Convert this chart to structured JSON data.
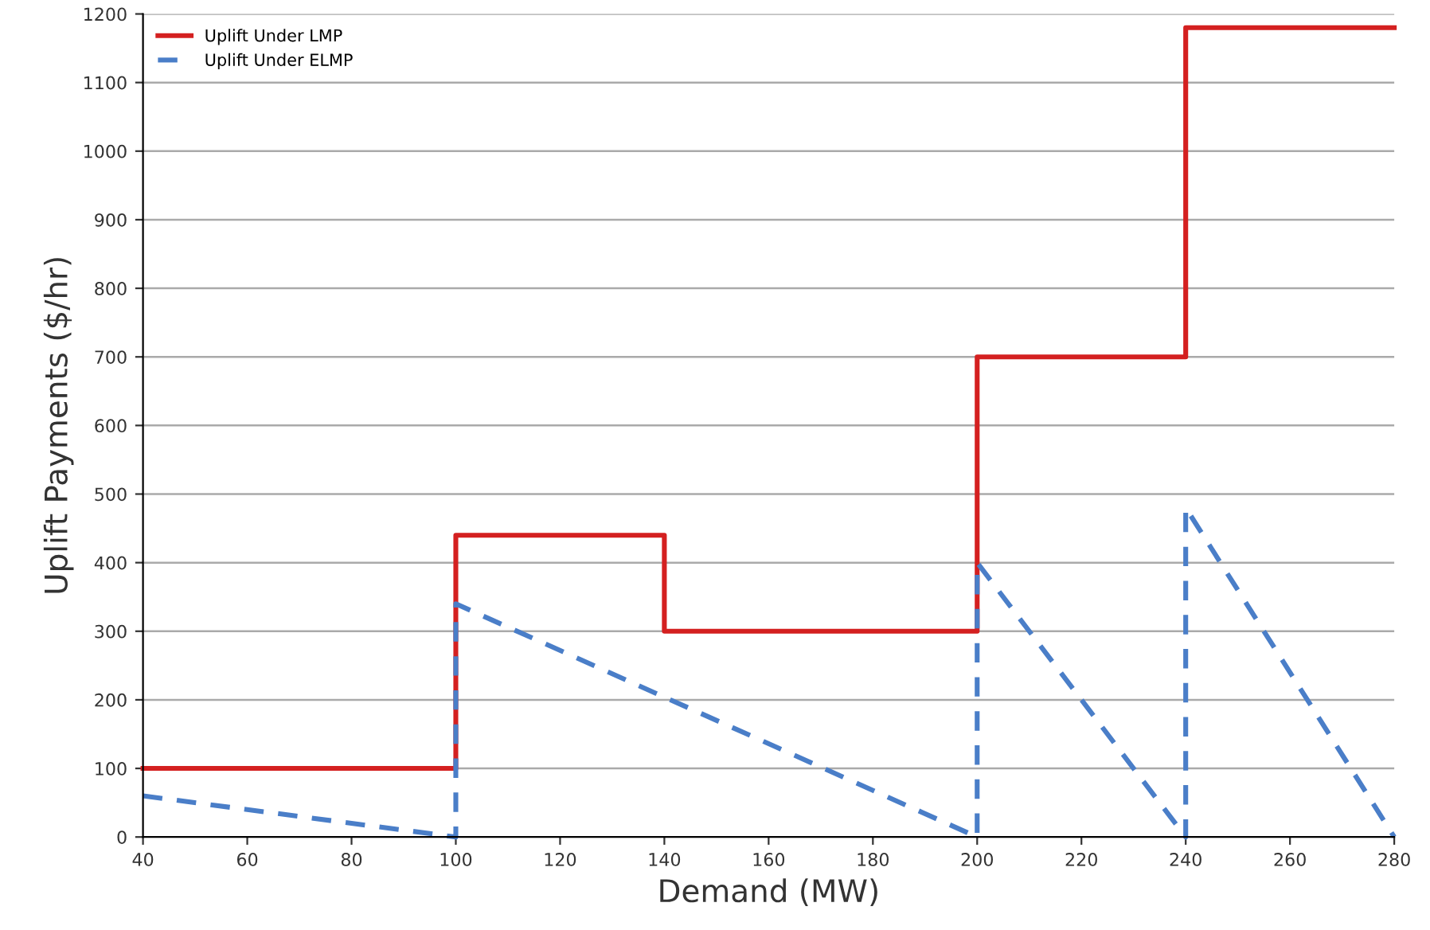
{
  "chart_data": {
    "type": "line",
    "xlabel": "Demand (MW)",
    "ylabel": "Uplift Payments ($/hr)",
    "series": [
      {
        "name": "Uplift Under LMP",
        "color": "#d42020",
        "line_style": "solid",
        "x": [
          40,
          100,
          100,
          140,
          140,
          200,
          200,
          240,
          240,
          280
        ],
        "values": [
          100,
          100,
          440,
          440,
          300,
          300,
          700,
          700,
          1180,
          1180
        ]
      },
      {
        "name": "Uplift Under ELMP",
        "color": "#4a7ec8",
        "line_style": "dashed",
        "x": [
          40,
          100,
          100,
          200,
          200,
          240,
          240,
          280
        ],
        "values": [
          60,
          0,
          340,
          0,
          400,
          0,
          480,
          0
        ]
      }
    ],
    "xlim": [
      40,
      280
    ],
    "xticks": [
      40,
      60,
      80,
      100,
      120,
      140,
      160,
      180,
      200,
      220,
      240,
      260,
      280
    ],
    "ylim": [
      0,
      1200
    ],
    "yticks": [
      0,
      100,
      200,
      300,
      400,
      500,
      600,
      700,
      800,
      900,
      1000,
      1100,
      1200
    ],
    "grid": "y",
    "legend": "top left",
    "marker": "none"
  }
}
